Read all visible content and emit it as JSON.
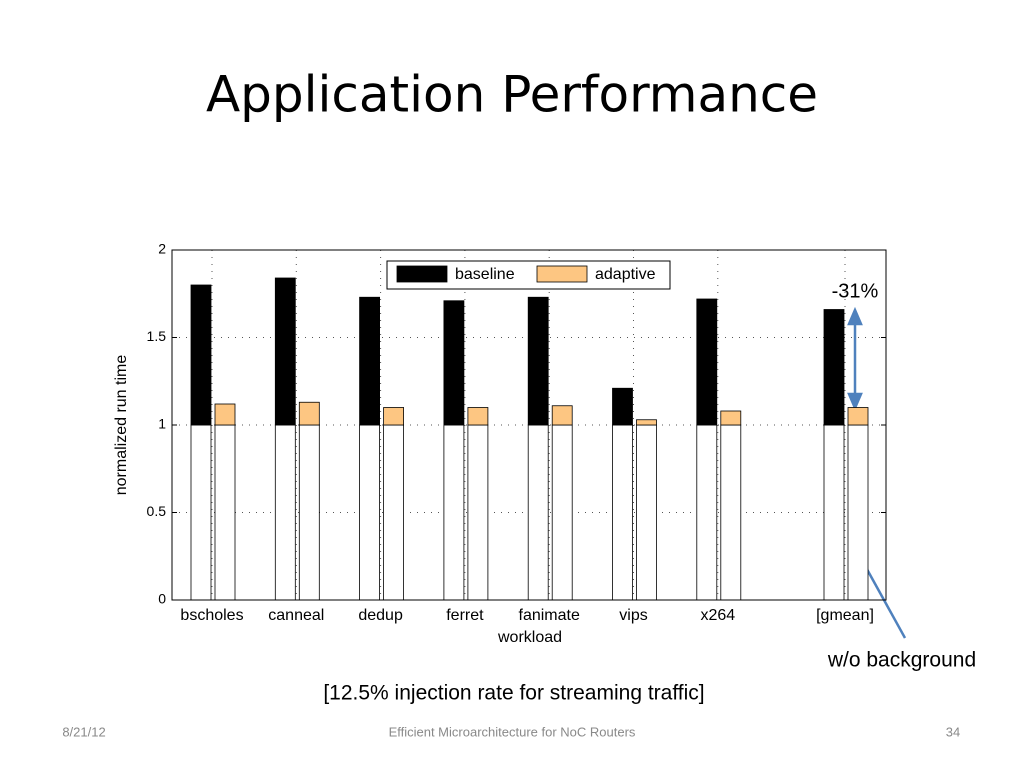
{
  "title": "Application Performance",
  "footer": {
    "date": "8/21/12",
    "center": "Efficient Microarchitecture for NoC Routers",
    "page": "34"
  },
  "chart_data": {
    "type": "bar",
    "stacked": true,
    "categories": [
      "bscholes",
      "canneal",
      "dedup",
      "ferret",
      "fanimate",
      "vips",
      "x264",
      "[gmean]"
    ],
    "series": [
      {
        "name": "baseline",
        "color": "#000000",
        "base_color": "#ffffff",
        "base": [
          1,
          1,
          1,
          1,
          1,
          1,
          1,
          1
        ],
        "values": [
          0.8,
          0.84,
          0.73,
          0.71,
          0.73,
          0.21,
          0.72,
          0.66
        ]
      },
      {
        "name": "adaptive",
        "color": "#fdc682",
        "base_color": "#ffffff",
        "base": [
          1,
          1,
          1,
          1,
          1,
          1,
          1,
          1
        ],
        "values": [
          0.12,
          0.13,
          0.1,
          0.1,
          0.11,
          0.03,
          0.08,
          0.1
        ]
      }
    ],
    "xlabel": "workload",
    "ylabel": "normalized run time",
    "ylim": [
      0,
      2
    ],
    "yticks": [
      0,
      0.5,
      1,
      1.5,
      2
    ],
    "grid": true,
    "legend": "top",
    "annotations": [
      "-31%",
      "w/o background",
      "[12.5% injection rate for streaming traffic]"
    ]
  }
}
